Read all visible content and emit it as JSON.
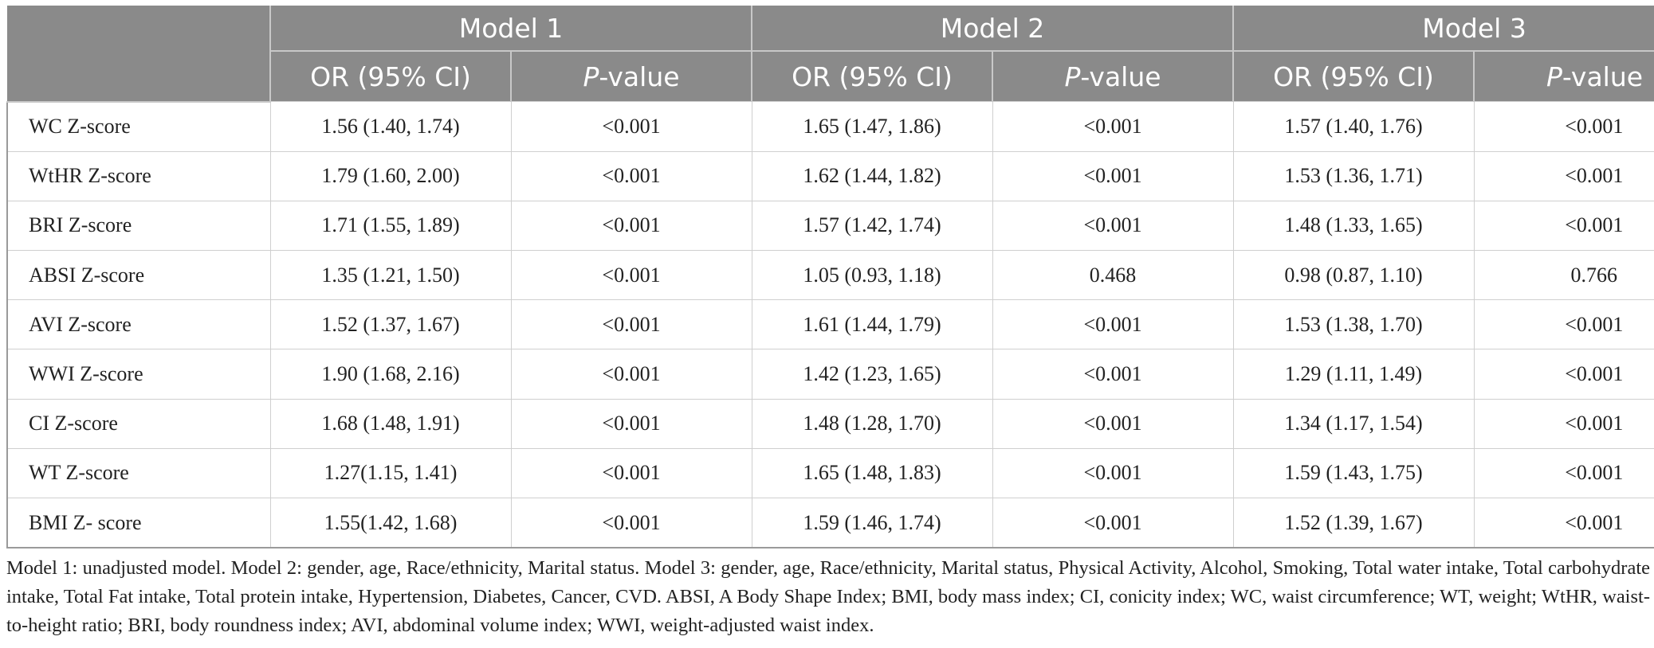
{
  "header": {
    "models": [
      "Model 1",
      "Model 2",
      "Model 3"
    ],
    "or_label": "OR (95% CI)",
    "p_prefix": "P",
    "p_suffix": "-value"
  },
  "rows": [
    {
      "label": "WC Z-score",
      "m1_or": "1.56 (1.40, 1.74)",
      "m1_p": "<0.001",
      "m2_or": "1.65 (1.47, 1.86)",
      "m2_p": "<0.001",
      "m3_or": "1.57 (1.40, 1.76)",
      "m3_p": "<0.001"
    },
    {
      "label": "WtHR Z-score",
      "m1_or": "1.79 (1.60, 2.00)",
      "m1_p": "<0.001",
      "m2_or": "1.62 (1.44, 1.82)",
      "m2_p": "<0.001",
      "m3_or": "1.53 (1.36, 1.71)",
      "m3_p": "<0.001"
    },
    {
      "label": "BRI Z-score",
      "m1_or": "1.71 (1.55, 1.89)",
      "m1_p": "<0.001",
      "m2_or": "1.57 (1.42, 1.74)",
      "m2_p": "<0.001",
      "m3_or": "1.48 (1.33, 1.65)",
      "m3_p": "<0.001"
    },
    {
      "label": "ABSI Z-score",
      "m1_or": "1.35 (1.21, 1.50)",
      "m1_p": "<0.001",
      "m2_or": "1.05 (0.93, 1.18)",
      "m2_p": "0.468",
      "m3_or": "0.98 (0.87, 1.10)",
      "m3_p": "0.766"
    },
    {
      "label": "AVI Z-score",
      "m1_or": "1.52 (1.37, 1.67)",
      "m1_p": "<0.001",
      "m2_or": "1.61 (1.44, 1.79)",
      "m2_p": "<0.001",
      "m3_or": "1.53 (1.38, 1.70)",
      "m3_p": "<0.001"
    },
    {
      "label": "WWI Z-score",
      "m1_or": "1.90 (1.68, 2.16)",
      "m1_p": "<0.001",
      "m2_or": "1.42 (1.23, 1.65)",
      "m2_p": "<0.001",
      "m3_or": "1.29 (1.11, 1.49)",
      "m3_p": "<0.001"
    },
    {
      "label": "CI Z-score",
      "m1_or": "1.68 (1.48, 1.91)",
      "m1_p": "<0.001",
      "m2_or": "1.48 (1.28, 1.70)",
      "m2_p": "<0.001",
      "m3_or": "1.34 (1.17, 1.54)",
      "m3_p": "<0.001"
    },
    {
      "label": "WT Z-score",
      "m1_or": "1.27(1.15, 1.41)",
      "m1_p": "<0.001",
      "m2_or": "1.65 (1.48, 1.83)",
      "m2_p": "<0.001",
      "m3_or": "1.59 (1.43, 1.75)",
      "m3_p": "<0.001"
    },
    {
      "label": "BMI Z- score",
      "m1_or": "1.55(1.42, 1.68)",
      "m1_p": "<0.001",
      "m2_or": "1.59 (1.46, 1.74)",
      "m2_p": "<0.001",
      "m3_or": "1.52 (1.39, 1.67)",
      "m3_p": "<0.001"
    }
  ],
  "footnote": "Model 1: unadjusted model. Model 2: gender, age, Race/ethnicity, Marital status. Model 3: gender, age, Race/ethnicity, Marital status, Physical Activity, Alcohol, Smoking, Total water intake, Total carbohydrate intake, Total Fat intake, Total protein intake, Hypertension, Diabetes, Cancer, CVD. ABSI, A Body Shape Index; BMI, body mass index; CI, conicity index; WC, waist circumference; WT, weight; WtHR, waist-to-height ratio; BRI, body roundness index; AVI, abdominal volume index; WWI, weight-adjusted waist index."
}
